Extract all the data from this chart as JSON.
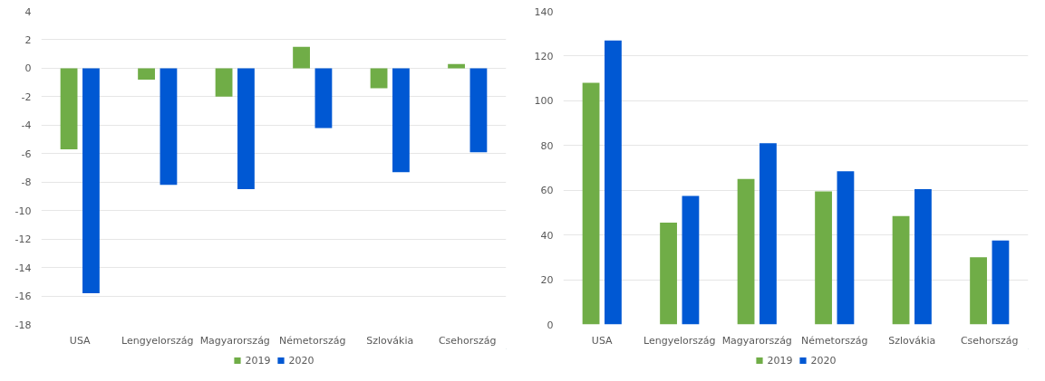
{
  "chart_data": [
    {
      "type": "bar",
      "categories": [
        "USA",
        "Lengyelország",
        "Magyarország",
        "Németország",
        "Szlovákia",
        "Csehország"
      ],
      "series": [
        {
          "name": "2019",
          "color": "#70ad47",
          "values": [
            -5.7,
            -0.8,
            -2.0,
            1.5,
            -1.4,
            0.3
          ]
        },
        {
          "name": "2020",
          "color": "#0058d3",
          "values": [
            -15.8,
            -8.2,
            -8.5,
            -4.2,
            -7.3,
            -5.9
          ]
        }
      ],
      "ylim": [
        -18,
        4
      ],
      "yticks": [
        -18,
        -16,
        -14,
        -12,
        -10,
        -8,
        -6,
        -4,
        -2,
        0,
        2,
        4
      ],
      "grid": "y",
      "legend": "bottom"
    },
    {
      "type": "bar",
      "categories": [
        "USA",
        "Lengyelország",
        "Magyarország",
        "Németország",
        "Szlovákia",
        "Csehország"
      ],
      "series": [
        {
          "name": "2019",
          "color": "#70ad47",
          "values": [
            108,
            45.5,
            65,
            59.5,
            48.5,
            30
          ]
        },
        {
          "name": "2020",
          "color": "#0058d3",
          "values": [
            127,
            57.5,
            81,
            68.5,
            60.5,
            37.5
          ]
        }
      ],
      "ylim": [
        0,
        140
      ],
      "yticks": [
        0,
        20,
        40,
        60,
        80,
        100,
        120,
        140
      ],
      "grid": "y",
      "legend": "bottom"
    }
  ]
}
